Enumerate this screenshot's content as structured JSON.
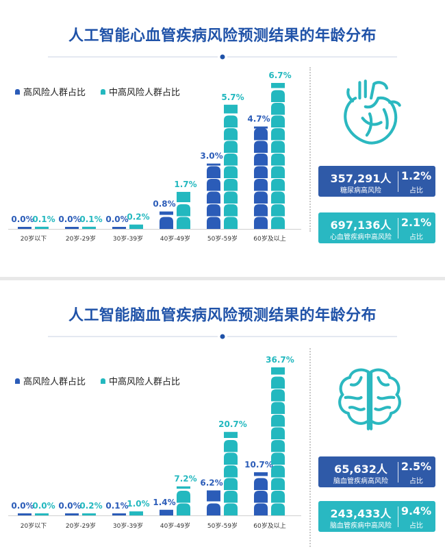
{
  "colors": {
    "high": "#2b5cb8",
    "mid": "#23b8bf",
    "title": "#1f52a8",
    "box_high": "#2f5aa8",
    "box_mid": "#29b8c2"
  },
  "legend": {
    "high": "高风险人群占比",
    "mid": "中高风险人群占比"
  },
  "panels": [
    {
      "title": "人工智能心血管疾病风险预测结果的年龄分布",
      "icon": "heart-icon",
      "boxes": [
        {
          "count": "357,291人",
          "label": "糖尿病高风险",
          "pct": "1.2%",
          "pct_label": "占比"
        },
        {
          "count": "697,136人",
          "label": "心血管疾病中高风险",
          "pct": "2.1%",
          "pct_label": "占比"
        }
      ]
    },
    {
      "title": "人工智能脑血管疾病风险预测结果的年龄分布",
      "icon": "brain-icon",
      "boxes": [
        {
          "count": "65,632人",
          "label": "脑血管疾病高风险",
          "pct": "2.5%",
          "pct_label": "占比"
        },
        {
          "count": "243,433人",
          "label": "脑血管疾病中高风险",
          "pct": "9.4%",
          "pct_label": "占比"
        }
      ]
    }
  ],
  "chart_data": [
    {
      "type": "bar",
      "title": "人工智能心血管疾病风险预测结果的年龄分布",
      "categories": [
        "20岁以下",
        "20岁-29岁",
        "30岁-39岁",
        "40岁-49岁",
        "50岁-59岁",
        "60岁及以上"
      ],
      "series": [
        {
          "name": "高风险人群占比",
          "values": [
            0.0,
            0.0,
            0.0,
            0.8,
            3.0,
            4.7
          ],
          "labels": [
            "0.0%",
            "0.0%",
            "0.0%",
            "0.8%",
            "3.0%",
            "4.7%"
          ]
        },
        {
          "name": "中高风险人群占比",
          "values": [
            0.1,
            0.1,
            0.2,
            1.7,
            5.7,
            6.7
          ],
          "labels": [
            "0.1%",
            "0.1%",
            "0.2%",
            "1.7%",
            "5.7%",
            "6.7%"
          ]
        }
      ],
      "legend": "top-left"
    },
    {
      "type": "bar",
      "title": "人工智能脑血管疾病风险预测结果的年龄分布",
      "categories": [
        "20岁以下",
        "20岁-29岁",
        "30岁-39岁",
        "40岁-49岁",
        "50岁-59岁",
        "60岁及以上"
      ],
      "series": [
        {
          "name": "高风险人群占比",
          "values": [
            0.0,
            0.0,
            0.1,
            1.4,
            6.2,
            10.7
          ],
          "labels": [
            "0.0%",
            "0.0%",
            "0.1%",
            "1.4%",
            "6.2%",
            "10.7%"
          ]
        },
        {
          "name": "中高风险人群占比",
          "values": [
            0.0,
            0.2,
            1.0,
            7.2,
            20.7,
            36.7
          ],
          "labels": [
            "0.0%",
            "0.2%",
            "1.0%",
            "7.2%",
            "20.7%",
            "36.7%"
          ]
        }
      ],
      "legend": "top-left"
    }
  ]
}
